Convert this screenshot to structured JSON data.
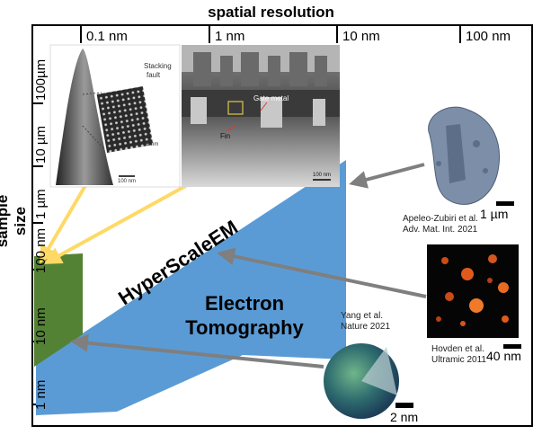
{
  "title": "spatial resolution",
  "ylabel": "sample size",
  "x_ticks": [
    "0.1 nm",
    "1 nm",
    "10 nm",
    "100 nm"
  ],
  "y_ticks": [
    "100µm",
    "10 µm",
    "1 µm",
    "100 nm",
    "10 nm",
    "1 nm"
  ],
  "regions": {
    "hyperscale": "HyperScaleEM",
    "tomography_line1": "Electron",
    "tomography_line2": "Tomography"
  },
  "inset1": {
    "stacking_fault": "Stacking\nfault",
    "scale_small": "1 nm",
    "scale_main": "100 nm"
  },
  "inset2": {
    "gate_metal": "Gate metal",
    "fin": "Fin",
    "scale": "100 nm"
  },
  "refs": {
    "apeleo_line1": "Apeleo-Zubiri et al.",
    "apeleo_line2": "Adv. Mat. Int. 2021",
    "apeleo_scale": "1 µm",
    "hovden_line1": "Hovden et al.",
    "hovden_line2": "Ultramic 2011",
    "hovden_scale": "40 nm",
    "yang_line1": "Yang et al.",
    "yang_line2": "Nature 2021",
    "yang_scale": "2 nm"
  },
  "colors": {
    "tomography_blue": "#5b9bd5",
    "hyperscale_green": "#548235",
    "arrow_gray": "#7f7f7f",
    "arrow_yellow": "#ffd966"
  }
}
